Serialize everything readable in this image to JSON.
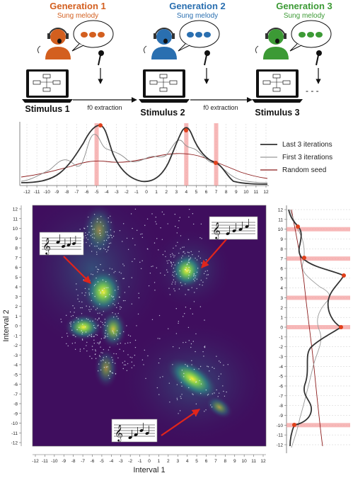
{
  "generations": [
    {
      "title": "Generation 1",
      "subtitle": "Sung melody",
      "color": "#d35f1f"
    },
    {
      "title": "Generation 2",
      "subtitle": "Sung melody",
      "color": "#2a6fb0"
    },
    {
      "title": "Generation 3",
      "subtitle": "Sung melody",
      "color": "#3c9a35"
    }
  ],
  "stimuli": [
    "Stimulus 1",
    "Stimulus 2",
    "Stimulus 3"
  ],
  "extraction_label": "f0 extraction",
  "ellipsis": "- - -",
  "legend": [
    {
      "label": "Last 3 iterations",
      "color": "#333333"
    },
    {
      "label": "First 3 iterations",
      "color": "#999999"
    },
    {
      "label": "Random seed",
      "color": "#8b1a1a"
    }
  ],
  "highlight_color": "#f4a0a0",
  "peak_color": "#e0401b",
  "heatmap_colors": {
    "background": "#3f0e5e",
    "mid": "#2a7b8e",
    "hot": "#e8e83a"
  },
  "interval_ticks": [
    "-12",
    "-11",
    "-10",
    "-9",
    "-8",
    "-7",
    "-6",
    "-5",
    "-4",
    "-3",
    "-2",
    "-1",
    "0",
    "1",
    "2",
    "3",
    "4",
    "5",
    "6",
    "7",
    "8",
    "9",
    "10",
    "11",
    "12"
  ],
  "top_peaks": [
    -5,
    4,
    7
  ],
  "right_peaks": [
    10,
    7,
    3,
    0,
    -10
  ],
  "axes": {
    "x_label": "Interval 1",
    "y_label": "Interval 2"
  }
}
